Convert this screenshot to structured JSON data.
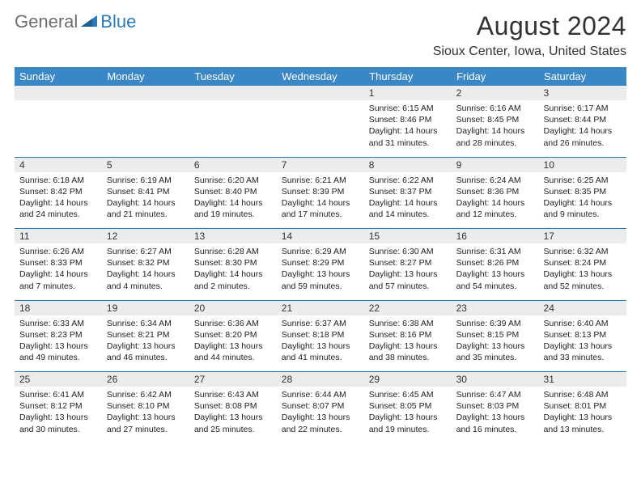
{
  "brand": {
    "part1": "General",
    "part2": "Blue"
  },
  "title": "August 2024",
  "location": "Sioux Center, Iowa, United States",
  "colors": {
    "header_bg": "#3a87c8",
    "header_text": "#ffffff",
    "daynum_bg": "#ececec",
    "divider": "#2b7bba",
    "text": "#222222",
    "brand_gray": "#6e6e6e",
    "brand_blue": "#2b7bba",
    "page_bg": "#ffffff"
  },
  "fonts": {
    "title_pt": 32,
    "location_pt": 16,
    "header_pt": 13,
    "daynum_pt": 12,
    "body_pt": 10.5
  },
  "days": [
    "Sunday",
    "Monday",
    "Tuesday",
    "Wednesday",
    "Thursday",
    "Friday",
    "Saturday"
  ],
  "weeks": [
    [
      null,
      null,
      null,
      null,
      {
        "n": "1",
        "sr": "Sunrise: 6:15 AM",
        "ss": "Sunset: 8:46 PM",
        "dl1": "Daylight: 14 hours",
        "dl2": "and 31 minutes."
      },
      {
        "n": "2",
        "sr": "Sunrise: 6:16 AM",
        "ss": "Sunset: 8:45 PM",
        "dl1": "Daylight: 14 hours",
        "dl2": "and 28 minutes."
      },
      {
        "n": "3",
        "sr": "Sunrise: 6:17 AM",
        "ss": "Sunset: 8:44 PM",
        "dl1": "Daylight: 14 hours",
        "dl2": "and 26 minutes."
      }
    ],
    [
      {
        "n": "4",
        "sr": "Sunrise: 6:18 AM",
        "ss": "Sunset: 8:42 PM",
        "dl1": "Daylight: 14 hours",
        "dl2": "and 24 minutes."
      },
      {
        "n": "5",
        "sr": "Sunrise: 6:19 AM",
        "ss": "Sunset: 8:41 PM",
        "dl1": "Daylight: 14 hours",
        "dl2": "and 21 minutes."
      },
      {
        "n": "6",
        "sr": "Sunrise: 6:20 AM",
        "ss": "Sunset: 8:40 PM",
        "dl1": "Daylight: 14 hours",
        "dl2": "and 19 minutes."
      },
      {
        "n": "7",
        "sr": "Sunrise: 6:21 AM",
        "ss": "Sunset: 8:39 PM",
        "dl1": "Daylight: 14 hours",
        "dl2": "and 17 minutes."
      },
      {
        "n": "8",
        "sr": "Sunrise: 6:22 AM",
        "ss": "Sunset: 8:37 PM",
        "dl1": "Daylight: 14 hours",
        "dl2": "and 14 minutes."
      },
      {
        "n": "9",
        "sr": "Sunrise: 6:24 AM",
        "ss": "Sunset: 8:36 PM",
        "dl1": "Daylight: 14 hours",
        "dl2": "and 12 minutes."
      },
      {
        "n": "10",
        "sr": "Sunrise: 6:25 AM",
        "ss": "Sunset: 8:35 PM",
        "dl1": "Daylight: 14 hours",
        "dl2": "and 9 minutes."
      }
    ],
    [
      {
        "n": "11",
        "sr": "Sunrise: 6:26 AM",
        "ss": "Sunset: 8:33 PM",
        "dl1": "Daylight: 14 hours",
        "dl2": "and 7 minutes."
      },
      {
        "n": "12",
        "sr": "Sunrise: 6:27 AM",
        "ss": "Sunset: 8:32 PM",
        "dl1": "Daylight: 14 hours",
        "dl2": "and 4 minutes."
      },
      {
        "n": "13",
        "sr": "Sunrise: 6:28 AM",
        "ss": "Sunset: 8:30 PM",
        "dl1": "Daylight: 14 hours",
        "dl2": "and 2 minutes."
      },
      {
        "n": "14",
        "sr": "Sunrise: 6:29 AM",
        "ss": "Sunset: 8:29 PM",
        "dl1": "Daylight: 13 hours",
        "dl2": "and 59 minutes."
      },
      {
        "n": "15",
        "sr": "Sunrise: 6:30 AM",
        "ss": "Sunset: 8:27 PM",
        "dl1": "Daylight: 13 hours",
        "dl2": "and 57 minutes."
      },
      {
        "n": "16",
        "sr": "Sunrise: 6:31 AM",
        "ss": "Sunset: 8:26 PM",
        "dl1": "Daylight: 13 hours",
        "dl2": "and 54 minutes."
      },
      {
        "n": "17",
        "sr": "Sunrise: 6:32 AM",
        "ss": "Sunset: 8:24 PM",
        "dl1": "Daylight: 13 hours",
        "dl2": "and 52 minutes."
      }
    ],
    [
      {
        "n": "18",
        "sr": "Sunrise: 6:33 AM",
        "ss": "Sunset: 8:23 PM",
        "dl1": "Daylight: 13 hours",
        "dl2": "and 49 minutes."
      },
      {
        "n": "19",
        "sr": "Sunrise: 6:34 AM",
        "ss": "Sunset: 8:21 PM",
        "dl1": "Daylight: 13 hours",
        "dl2": "and 46 minutes."
      },
      {
        "n": "20",
        "sr": "Sunrise: 6:36 AM",
        "ss": "Sunset: 8:20 PM",
        "dl1": "Daylight: 13 hours",
        "dl2": "and 44 minutes."
      },
      {
        "n": "21",
        "sr": "Sunrise: 6:37 AM",
        "ss": "Sunset: 8:18 PM",
        "dl1": "Daylight: 13 hours",
        "dl2": "and 41 minutes."
      },
      {
        "n": "22",
        "sr": "Sunrise: 6:38 AM",
        "ss": "Sunset: 8:16 PM",
        "dl1": "Daylight: 13 hours",
        "dl2": "and 38 minutes."
      },
      {
        "n": "23",
        "sr": "Sunrise: 6:39 AM",
        "ss": "Sunset: 8:15 PM",
        "dl1": "Daylight: 13 hours",
        "dl2": "and 35 minutes."
      },
      {
        "n": "24",
        "sr": "Sunrise: 6:40 AM",
        "ss": "Sunset: 8:13 PM",
        "dl1": "Daylight: 13 hours",
        "dl2": "and 33 minutes."
      }
    ],
    [
      {
        "n": "25",
        "sr": "Sunrise: 6:41 AM",
        "ss": "Sunset: 8:12 PM",
        "dl1": "Daylight: 13 hours",
        "dl2": "and 30 minutes."
      },
      {
        "n": "26",
        "sr": "Sunrise: 6:42 AM",
        "ss": "Sunset: 8:10 PM",
        "dl1": "Daylight: 13 hours",
        "dl2": "and 27 minutes."
      },
      {
        "n": "27",
        "sr": "Sunrise: 6:43 AM",
        "ss": "Sunset: 8:08 PM",
        "dl1": "Daylight: 13 hours",
        "dl2": "and 25 minutes."
      },
      {
        "n": "28",
        "sr": "Sunrise: 6:44 AM",
        "ss": "Sunset: 8:07 PM",
        "dl1": "Daylight: 13 hours",
        "dl2": "and 22 minutes."
      },
      {
        "n": "29",
        "sr": "Sunrise: 6:45 AM",
        "ss": "Sunset: 8:05 PM",
        "dl1": "Daylight: 13 hours",
        "dl2": "and 19 minutes."
      },
      {
        "n": "30",
        "sr": "Sunrise: 6:47 AM",
        "ss": "Sunset: 8:03 PM",
        "dl1": "Daylight: 13 hours",
        "dl2": "and 16 minutes."
      },
      {
        "n": "31",
        "sr": "Sunrise: 6:48 AM",
        "ss": "Sunset: 8:01 PM",
        "dl1": "Daylight: 13 hours",
        "dl2": "and 13 minutes."
      }
    ]
  ]
}
